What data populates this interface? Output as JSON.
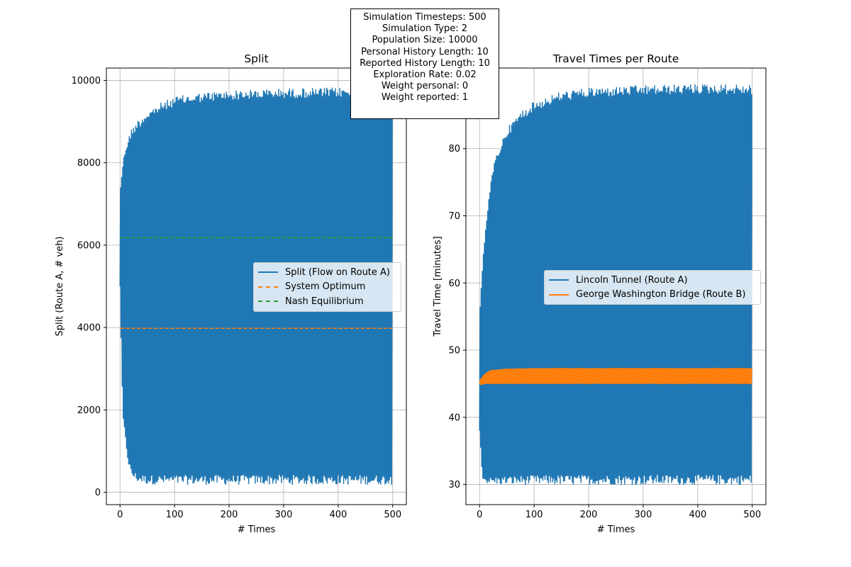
{
  "info_box": [
    "Simulation Timesteps: 500",
    "Simulation Type: 2",
    "Population Size: 10000",
    "Personal History Length: 10",
    "Reported History Length: 10",
    "Exploration Rate: 0.02",
    "Weight personal: 0",
    "Weight reported: 1"
  ],
  "colors": {
    "blue": "#1f77b4",
    "orange": "#ff7f0e",
    "green": "#2ca02c"
  },
  "chart_data": [
    {
      "type": "line",
      "title": "Split",
      "xlabel": "# Times",
      "ylabel": "Split (Route A, # veh)",
      "xlim": [
        -25,
        525
      ],
      "ylim": [
        -300,
        10300
      ],
      "xticks": [
        0,
        100,
        200,
        300,
        400,
        500
      ],
      "yticks": [
        0,
        2000,
        4000,
        6000,
        8000,
        10000
      ],
      "grid": true,
      "legend_position": "center-right",
      "series": [
        {
          "name": "Split (Flow on Route A)",
          "color": "#1f77b4",
          "style": "oscillating",
          "x_range": [
            0,
            499
          ],
          "start_value": 5000,
          "upper_envelope": {
            "x": [
              0,
              5,
              10,
              20,
              30,
              50,
              75,
              100,
              150,
              200,
              300,
              400,
              499
            ],
            "y": [
              7300,
              8000,
              8400,
              8800,
              9000,
              9250,
              9450,
              9600,
              9700,
              9750,
              9800,
              9820,
              9800
            ]
          },
          "lower_envelope": {
            "x": [
              0,
              5,
              10,
              15,
              20,
              30,
              50,
              100,
              200,
              300,
              400,
              499
            ],
            "y": [
              5000,
              1800,
              1200,
              700,
              400,
              250,
              200,
              190,
              190,
              190,
              190,
              190
            ]
          }
        },
        {
          "name": "System Optimum",
          "color": "#ff7f0e",
          "dashed": true,
          "x": [
            0,
            499
          ],
          "y": [
            3980,
            3980
          ]
        },
        {
          "name": "Nash Equilibrium",
          "color": "#2ca02c",
          "dashed": true,
          "x": [
            0,
            499
          ],
          "y": [
            6180,
            6180
          ]
        }
      ]
    },
    {
      "type": "line",
      "title": "Travel Times per Route",
      "xlabel": "# Times",
      "ylabel": "Travel Time [minutes]",
      "xlim": [
        -25,
        525
      ],
      "ylim": [
        27,
        92
      ],
      "xticks": [
        0,
        100,
        200,
        300,
        400,
        500
      ],
      "yticks": [
        30,
        40,
        50,
        60,
        70,
        80
      ],
      "grid": true,
      "legend_position": "center-right",
      "series": [
        {
          "name": "Lincoln Tunnel (Route A)",
          "color": "#1f77b4",
          "style": "oscillating",
          "x_range": [
            0,
            499
          ],
          "start_value": 38,
          "upper_envelope": {
            "x": [
              0,
              5,
              10,
              20,
              30,
              50,
              75,
              100,
              150,
              200,
              300,
              400,
              499
            ],
            "y": [
              55,
              62,
              68,
              75,
              79,
              83,
              85.5,
              87,
              88.5,
              89,
              89.4,
              89.6,
              89.5
            ]
          },
          "lower_envelope": {
            "x": [
              0,
              5,
              10,
              20,
              50,
              100,
              200,
              300,
              400,
              499
            ],
            "y": [
              38,
              31,
              30.3,
              30,
              30,
              30,
              30,
              30,
              30,
              30
            ]
          }
        },
        {
          "name": "George Washington Bridge (Route B)",
          "color": "#ff7f0e",
          "style": "oscillating",
          "x_range": [
            0,
            499
          ],
          "start_value": 45,
          "upper_envelope": {
            "x": [
              0,
              10,
              20,
              50,
              100,
              200,
              300,
              400,
              499
            ],
            "y": [
              45.5,
              46.5,
              47,
              47.2,
              47.3,
              47.3,
              47.3,
              47.3,
              47.3
            ]
          },
          "lower_envelope": {
            "x": [
              0,
              10,
              20,
              50,
              100,
              200,
              300,
              400,
              499
            ],
            "y": [
              44.8,
              45,
              45,
              45,
              45,
              45,
              45,
              45,
              45
            ]
          }
        }
      ]
    }
  ]
}
